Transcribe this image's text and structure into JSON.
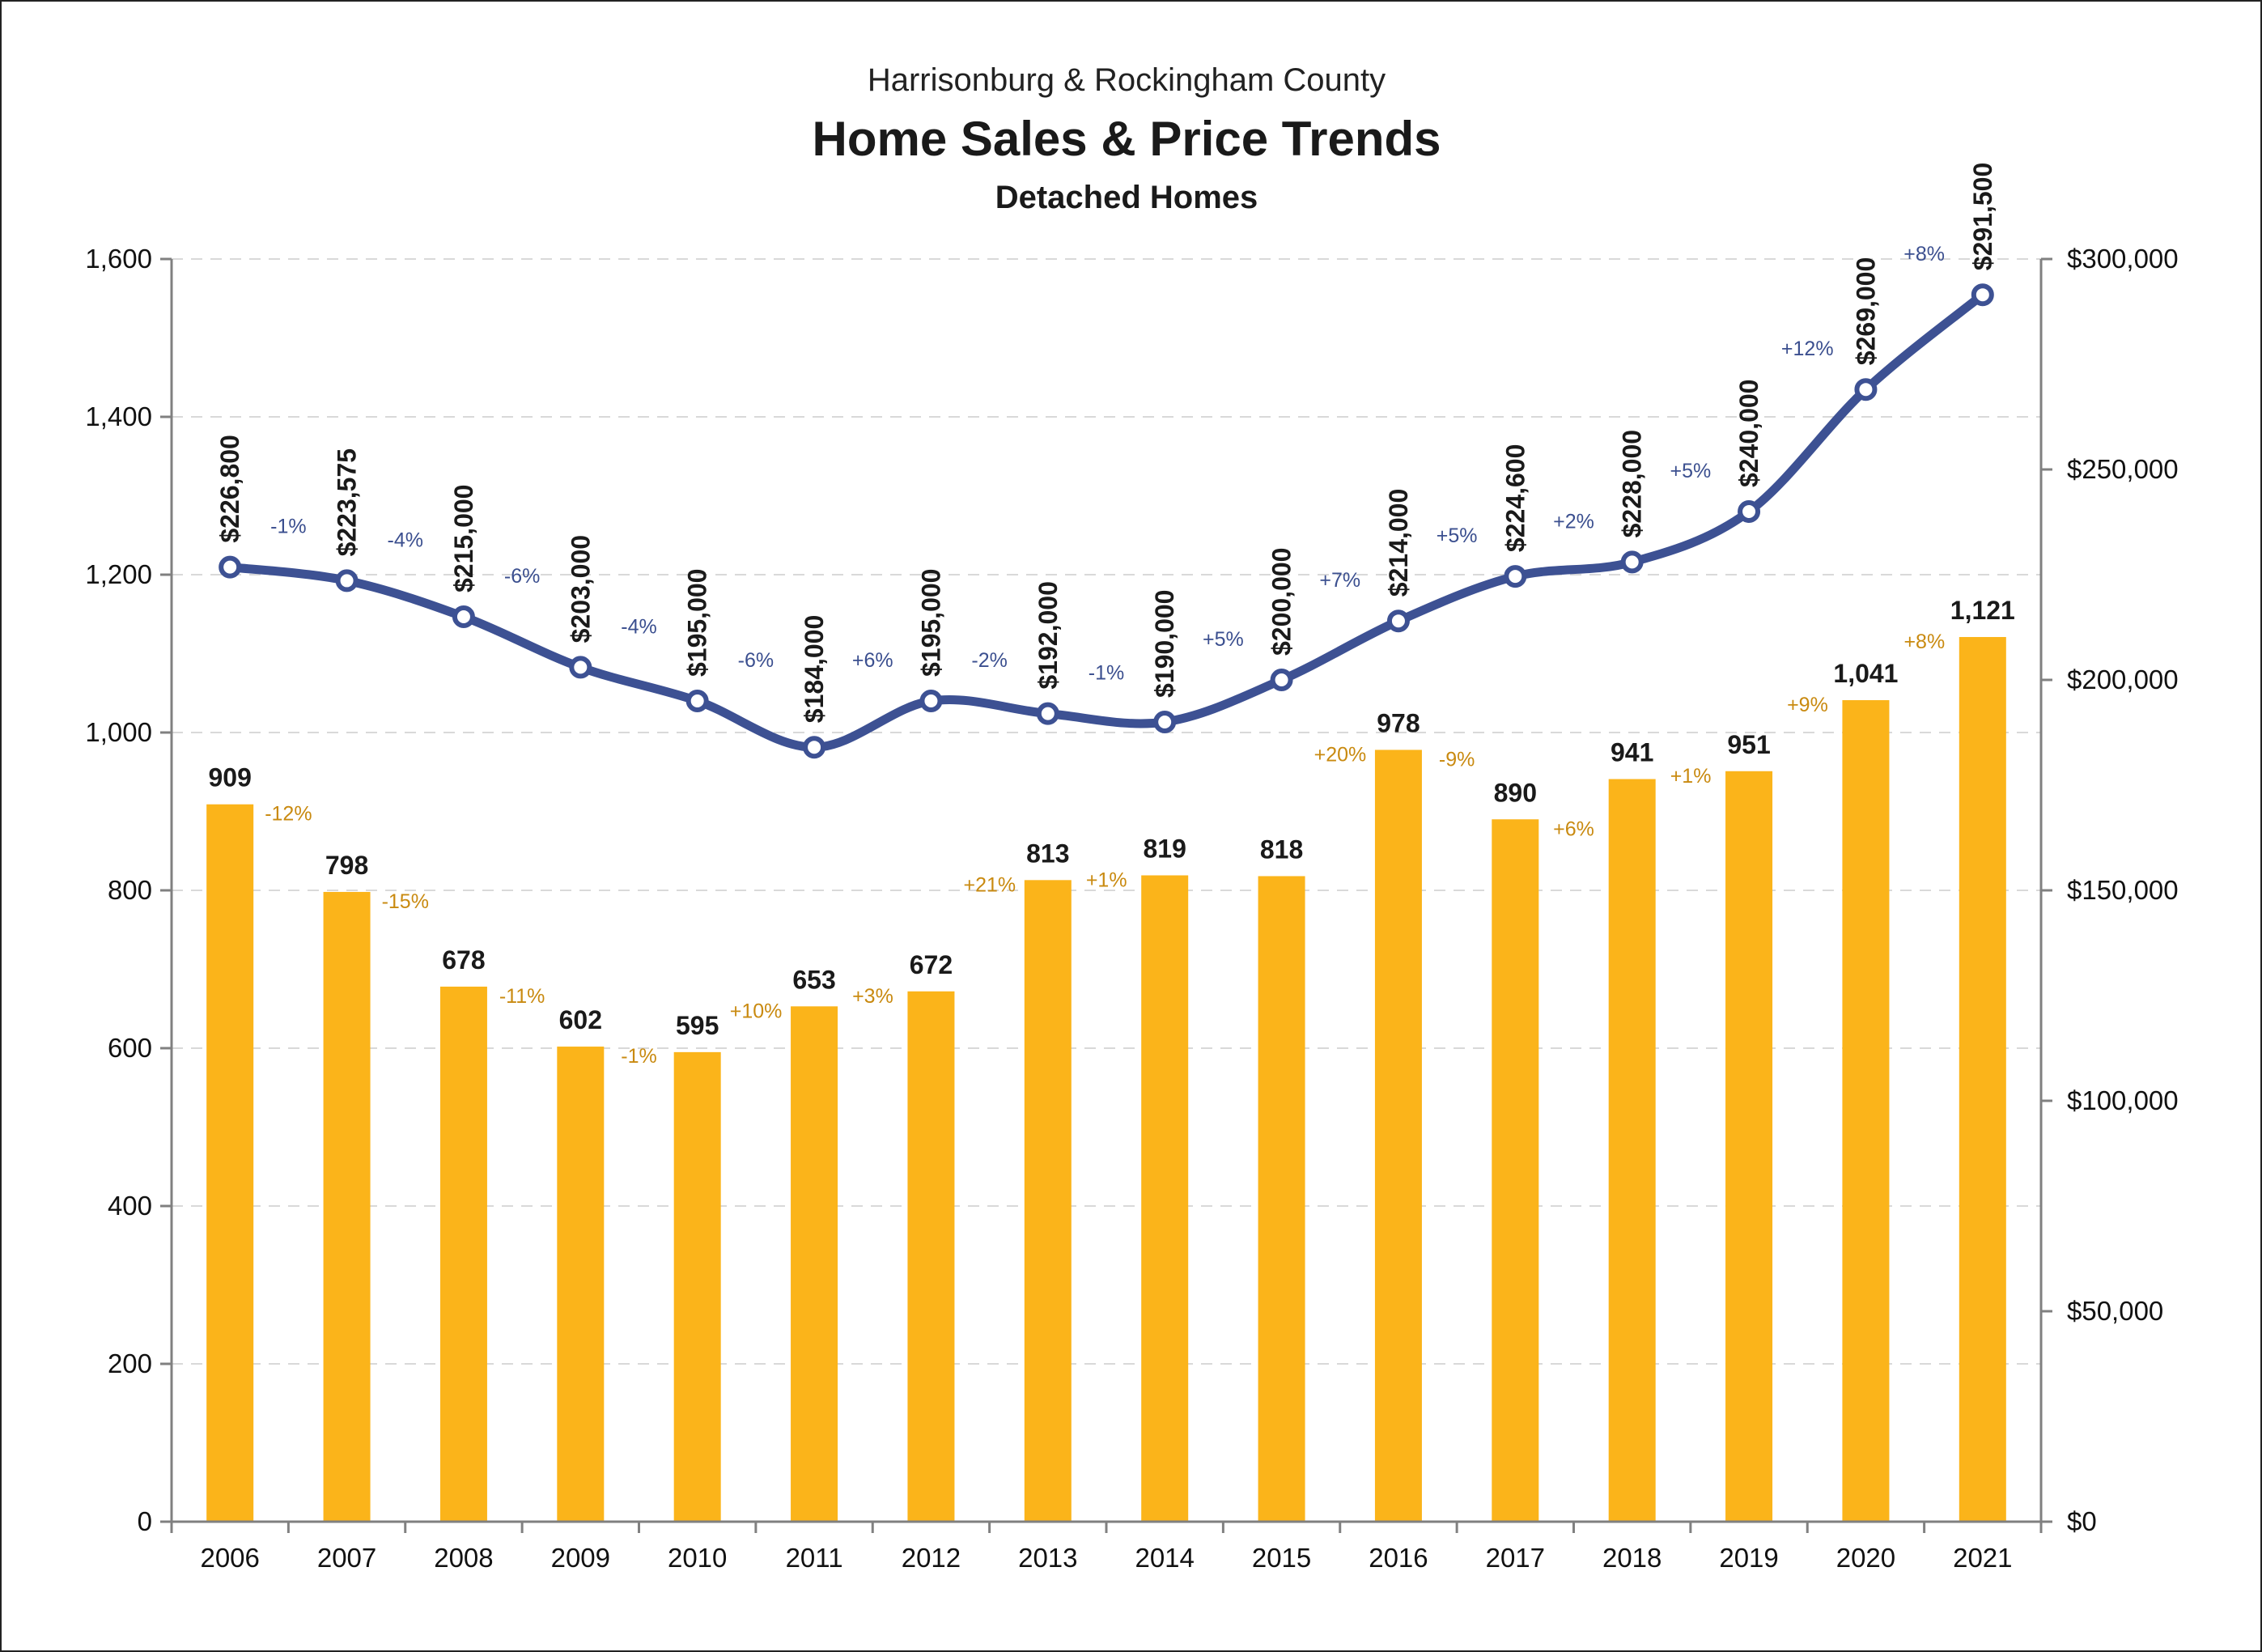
{
  "chart_data": {
    "type": "bar+line",
    "title_top": "Harrisonburg & Rockingham County",
    "title": "Home Sales & Price Trends",
    "subtitle": "Detached Homes",
    "categories": [
      "2006",
      "2007",
      "2008",
      "2009",
      "2010",
      "2011",
      "2012",
      "2013",
      "2014",
      "2015",
      "2016",
      "2017",
      "2018",
      "2019",
      "2020",
      "2021"
    ],
    "y_left": {
      "min": 0,
      "max": 1600,
      "ticks": [
        0,
        200,
        400,
        600,
        800,
        1000,
        1200,
        1400,
        1600
      ],
      "tick_labels": [
        "0",
        "200",
        "400",
        "600",
        "800",
        "1,000",
        "1,200",
        "1,400",
        "1,600"
      ]
    },
    "y_right": {
      "min": 0,
      "max": 300000,
      "ticks": [
        0,
        50000,
        100000,
        150000,
        200000,
        250000,
        300000
      ],
      "tick_labels": [
        "$0",
        "$50,000",
        "$100,000",
        "$150,000",
        "$200,000",
        "$250,000",
        "$300,000"
      ]
    },
    "grid": "dashed-horizontal",
    "series": [
      {
        "name": "Home Sales",
        "type": "bar",
        "axis": "left",
        "color": "#FBB41A",
        "values": [
          909,
          798,
          678,
          602,
          595,
          653,
          672,
          813,
          819,
          818,
          978,
          890,
          941,
          951,
          1041,
          1121
        ],
        "labels": [
          "909",
          "798",
          "678",
          "602",
          "595",
          "653",
          "672",
          "813",
          "819",
          "818",
          "978",
          "890",
          "941",
          "951",
          "1,041",
          "1,121"
        ],
        "changes": [
          "-12%",
          "-15%",
          "-11%",
          "-1%",
          "+10%",
          "+3%",
          "+21%",
          "+1%",
          "",
          "+20%",
          "-9%",
          "+6%",
          "+1%",
          "+9%",
          "+8%"
        ]
      },
      {
        "name": "Median Price",
        "type": "line",
        "axis": "right",
        "color": "#3D5193",
        "values": [
          226800,
          223575,
          215000,
          203000,
          195000,
          184000,
          195000,
          192000,
          190000,
          200000,
          214000,
          224600,
          228000,
          240000,
          269000,
          291500
        ],
        "labels": [
          "$226,800",
          "$223,575",
          "$215,000",
          "$203,000",
          "$195,000",
          "$184,000",
          "$195,000",
          "$192,000",
          "$190,000",
          "$200,000",
          "$214,000",
          "$224,600",
          "$228,000",
          "$240,000",
          "$269,000",
          "$291,500"
        ],
        "changes": [
          "-1%",
          "-4%",
          "-6%",
          "-4%",
          "-6%",
          "+6%",
          "-2%",
          "-1%",
          "+5%",
          "+7%",
          "+5%",
          "+2%",
          "+5%",
          "+12%",
          "+8%"
        ]
      }
    ]
  }
}
